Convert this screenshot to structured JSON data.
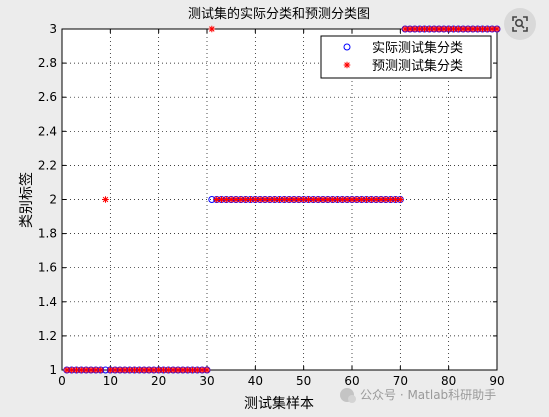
{
  "chart_data": {
    "type": "scatter",
    "title": "测试集的实际分类和预测分类图",
    "xlabel": "测试集样本",
    "ylabel": "类别标签",
    "xlim": [
      0,
      90
    ],
    "ylim": [
      1,
      3
    ],
    "xticks": [
      0,
      10,
      20,
      30,
      40,
      50,
      60,
      70,
      80,
      90
    ],
    "yticks": [
      1,
      1.2,
      1.4,
      1.6,
      1.8,
      2,
      2.2,
      2.4,
      2.6,
      2.8,
      3
    ],
    "grid": true,
    "legend_position": "top-right",
    "series": [
      {
        "name": "实际测试集分类",
        "marker": "circle",
        "color": "#0000ff",
        "x": [
          1,
          2,
          3,
          4,
          5,
          6,
          7,
          8,
          9,
          10,
          11,
          12,
          13,
          14,
          15,
          16,
          17,
          18,
          19,
          20,
          21,
          22,
          23,
          24,
          25,
          26,
          27,
          28,
          29,
          30,
          31,
          32,
          33,
          34,
          35,
          36,
          37,
          38,
          39,
          40,
          41,
          42,
          43,
          44,
          45,
          46,
          47,
          48,
          49,
          50,
          51,
          52,
          53,
          54,
          55,
          56,
          57,
          58,
          59,
          60,
          61,
          62,
          63,
          64,
          65,
          66,
          67,
          68,
          69,
          70,
          71,
          72,
          73,
          74,
          75,
          76,
          77,
          78,
          79,
          80,
          81,
          82,
          83,
          84,
          85,
          86,
          87,
          88,
          89,
          90
        ],
        "y": [
          1,
          1,
          1,
          1,
          1,
          1,
          1,
          1,
          1,
          1,
          1,
          1,
          1,
          1,
          1,
          1,
          1,
          1,
          1,
          1,
          1,
          1,
          1,
          1,
          1,
          1,
          1,
          1,
          1,
          1,
          2,
          2,
          2,
          2,
          2,
          2,
          2,
          2,
          2,
          2,
          2,
          2,
          2,
          2,
          2,
          2,
          2,
          2,
          2,
          2,
          2,
          2,
          2,
          2,
          2,
          2,
          2,
          2,
          2,
          2,
          2,
          2,
          2,
          2,
          2,
          2,
          2,
          2,
          2,
          2,
          3,
          3,
          3,
          3,
          3,
          3,
          3,
          3,
          3,
          3,
          3,
          3,
          3,
          3,
          3,
          3,
          3,
          3,
          3,
          3
        ]
      },
      {
        "name": "预测测试集分类",
        "marker": "star",
        "color": "#ff0000",
        "x": [
          1,
          2,
          3,
          4,
          5,
          6,
          7,
          8,
          9,
          10,
          11,
          12,
          13,
          14,
          15,
          16,
          17,
          18,
          19,
          20,
          21,
          22,
          23,
          24,
          25,
          26,
          27,
          28,
          29,
          30,
          31,
          32,
          33,
          34,
          35,
          36,
          37,
          38,
          39,
          40,
          41,
          42,
          43,
          44,
          45,
          46,
          47,
          48,
          49,
          50,
          51,
          52,
          53,
          54,
          55,
          56,
          57,
          58,
          59,
          60,
          61,
          62,
          63,
          64,
          65,
          66,
          67,
          68,
          69,
          70,
          71,
          72,
          73,
          74,
          75,
          76,
          77,
          78,
          79,
          80,
          81,
          82,
          83,
          84,
          85,
          86,
          87,
          88,
          89,
          90
        ],
        "y": [
          1,
          1,
          1,
          1,
          1,
          1,
          1,
          1,
          2,
          1,
          1,
          1,
          1,
          1,
          1,
          1,
          1,
          1,
          1,
          1,
          1,
          1,
          1,
          1,
          1,
          1,
          1,
          1,
          1,
          1,
          3,
          2,
          2,
          2,
          2,
          2,
          2,
          2,
          2,
          2,
          2,
          2,
          2,
          2,
          2,
          2,
          2,
          2,
          2,
          2,
          2,
          2,
          2,
          2,
          2,
          2,
          2,
          2,
          2,
          2,
          2,
          2,
          2,
          2,
          2,
          2,
          2,
          2,
          2,
          2,
          3,
          3,
          3,
          3,
          3,
          3,
          3,
          3,
          3,
          3,
          3,
          3,
          3,
          3,
          3,
          3,
          3,
          3,
          3,
          3
        ]
      }
    ]
  },
  "watermark": {
    "text": "公众号 · Matlab科研助手"
  },
  "lens_button": {
    "icon": "lens-icon"
  }
}
